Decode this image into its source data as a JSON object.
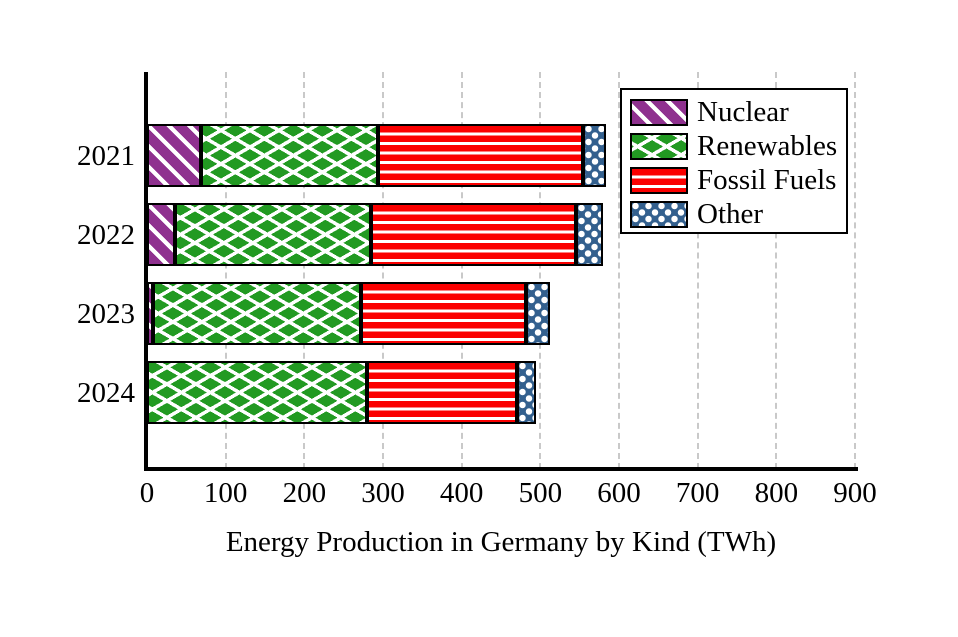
{
  "chart_data": {
    "type": "bar",
    "orientation": "horizontal",
    "stacked": true,
    "categories": [
      "2021",
      "2022",
      "2023",
      "2024"
    ],
    "series": [
      {
        "name": "Nuclear",
        "values": [
          69,
          35,
          7,
          0
        ],
        "color": "#8f318f",
        "pattern": "diagonal-stripes"
      },
      {
        "name": "Renewables",
        "values": [
          225,
          250,
          265,
          280
        ],
        "color": "#229a22",
        "pattern": "crosshatch"
      },
      {
        "name": "Fossil Fuels",
        "values": [
          260,
          260,
          210,
          190
        ],
        "color": "#fb0000",
        "pattern": "horizontal-stripes"
      },
      {
        "name": "Other",
        "values": [
          30,
          35,
          30,
          25
        ],
        "color": "#33608e",
        "pattern": "dots"
      }
    ],
    "xlabel": "Energy Production in Germany by Kind (TWh)",
    "xlim": [
      0,
      900
    ],
    "xticks": [
      0,
      100,
      200,
      300,
      400,
      500,
      600,
      700,
      800,
      900
    ],
    "grid": true,
    "grid_color": "#c9c9c9",
    "bar_edge_color": "#000000",
    "hatch_color": "#ffffff",
    "legend_position": "top-right"
  },
  "legend": {
    "entries": [
      "Nuclear",
      "Renewables",
      "Fossil Fuels",
      "Other"
    ]
  }
}
